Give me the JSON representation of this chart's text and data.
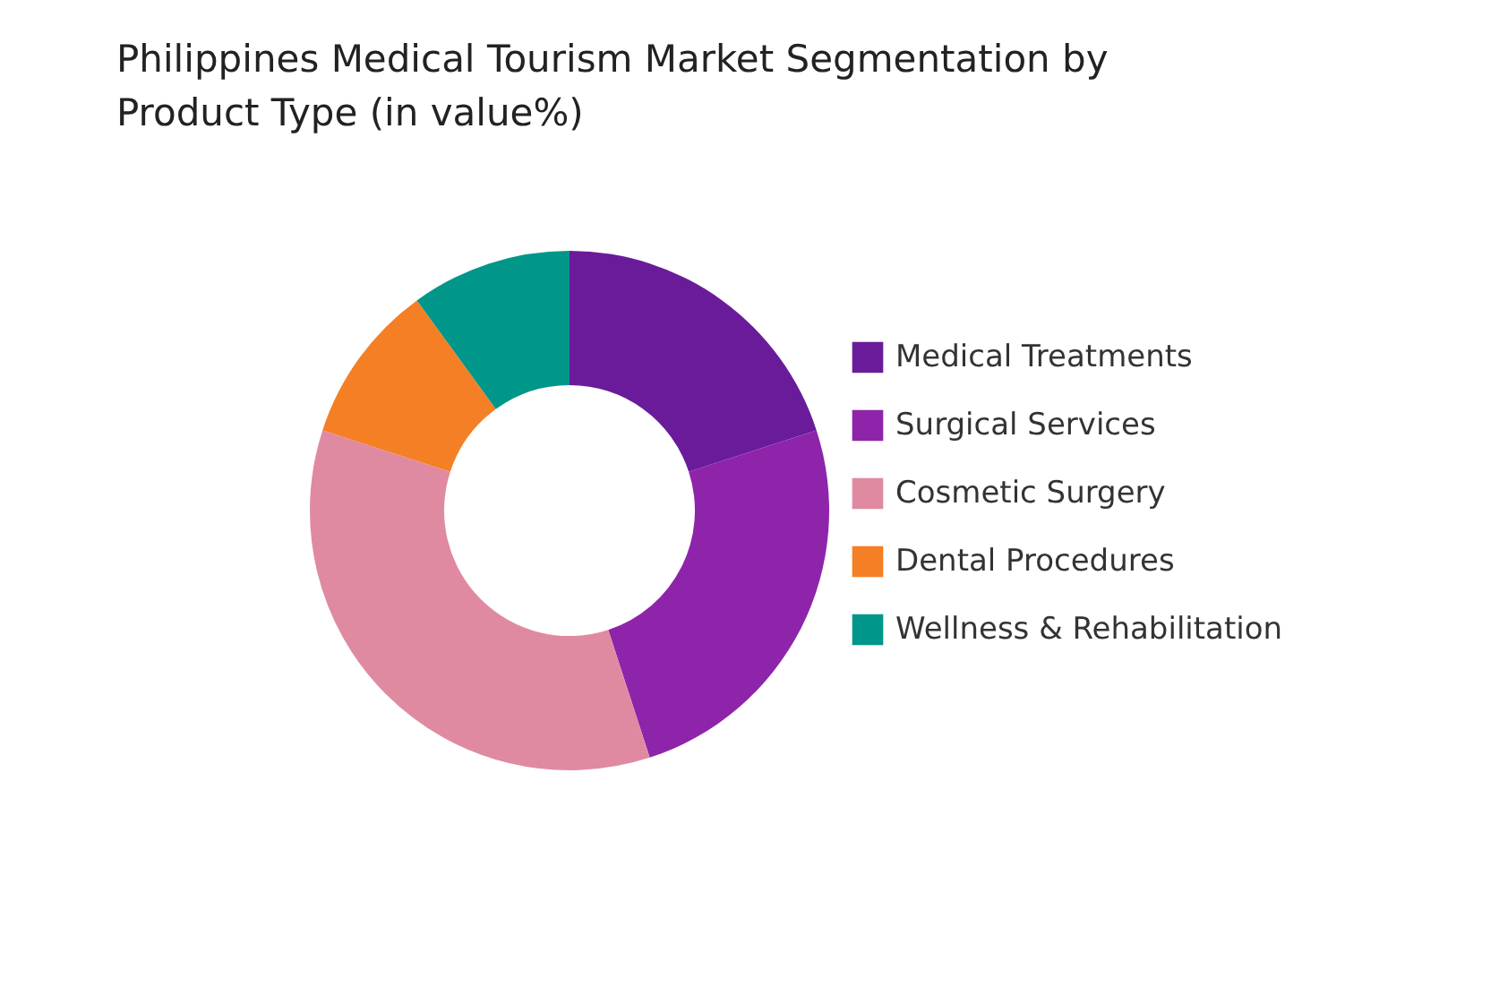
{
  "chart_data": {
    "type": "donut",
    "title": "Philippines Medical Tourism Market Segmentation by Product Type (in value%)",
    "categories": [
      "Medical Treatments",
      "Surgical Services",
      "Cosmetic Surgery",
      "Dental Procedures",
      "Wellness & Rehabilitation"
    ],
    "values": [
      20,
      25,
      35,
      10,
      10
    ],
    "colors": [
      "#6a1b9a",
      "#8e24aa",
      "#e08aa2",
      "#f57f25",
      "#00968a"
    ],
    "legend": "right"
  }
}
